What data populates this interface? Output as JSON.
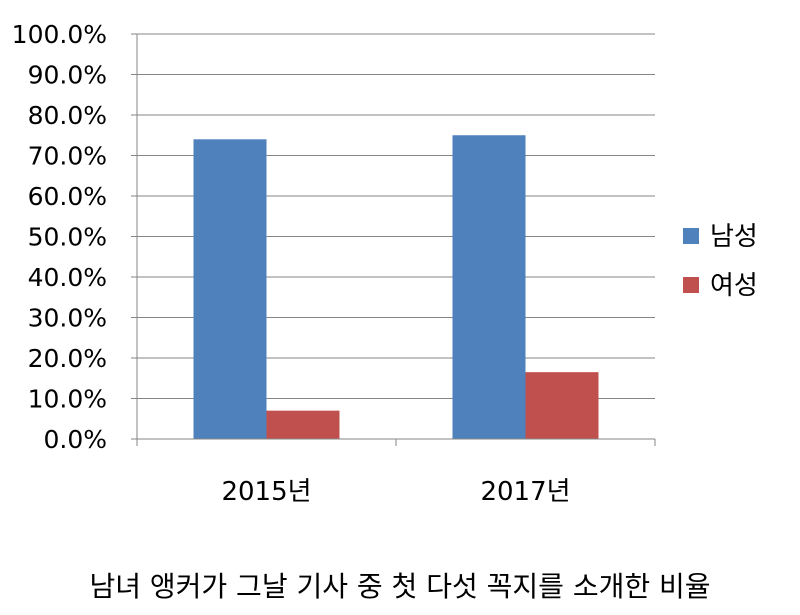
{
  "caption": "남녀 앵커가 그날 기사 중 첫 다섯 꼭지를 소개한 비율",
  "chart_data": {
    "type": "bar",
    "categories": [
      "2015년",
      "2017년"
    ],
    "series": [
      {
        "name": "남성",
        "values": [
          74.0,
          75.0
        ],
        "color": "#4F81BD"
      },
      {
        "name": "여성",
        "values": [
          7.0,
          16.5
        ],
        "color": "#C0504D"
      }
    ],
    "ylim": [
      0,
      100
    ],
    "ytick_step": 10,
    "ytick_labels": [
      "0.0%",
      "10.0%",
      "20.0%",
      "30.0%",
      "40.0%",
      "50.0%",
      "60.0%",
      "70.0%",
      "80.0%",
      "90.0%",
      "100.0%"
    ],
    "grid": true,
    "legend": "right",
    "title": "",
    "xlabel": "",
    "ylabel": ""
  }
}
